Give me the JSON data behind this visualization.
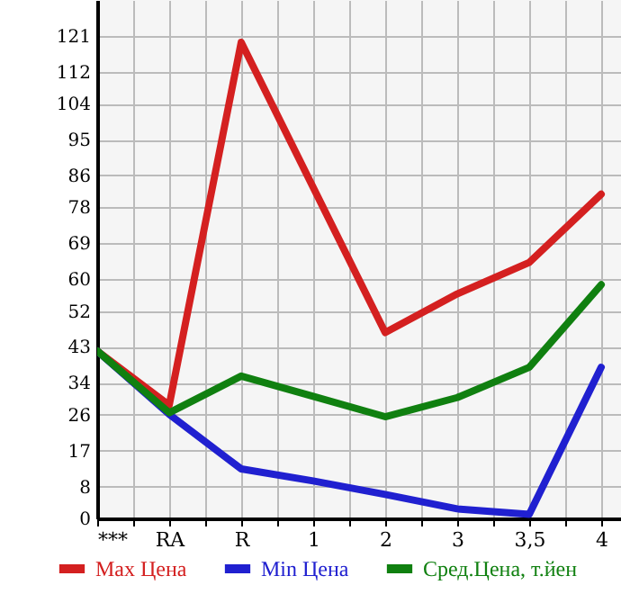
{
  "chart_data": {
    "type": "line",
    "categories": [
      "***",
      "RA",
      "R",
      "1",
      "2",
      "3",
      "3,5",
      "4"
    ],
    "series": [
      {
        "name": "Max Цена",
        "color": "#d42020",
        "values": [
          42,
          28.4,
          119.4,
          83,
          46.6,
          56.3,
          64.2,
          81.3
        ]
      },
      {
        "name": "Min Цена",
        "color": "#2020d0",
        "values": [
          42,
          26.1,
          12.4,
          9.4,
          6,
          2.4,
          1,
          37.9
        ]
      },
      {
        "name": "Сред.Цена, т.йен",
        "color": "#108010",
        "values": [
          42,
          26.5,
          35.7,
          30.6,
          25.5,
          30.3,
          37.9,
          58.6
        ]
      }
    ],
    "ylim": [
      0,
      130
    ],
    "yticks": [
      0,
      8,
      17,
      26,
      34,
      43,
      52,
      60,
      69,
      78,
      86,
      95,
      104,
      112,
      121
    ],
    "grid": true,
    "legend": "bottom",
    "line_style": "solid",
    "marker": "none"
  }
}
